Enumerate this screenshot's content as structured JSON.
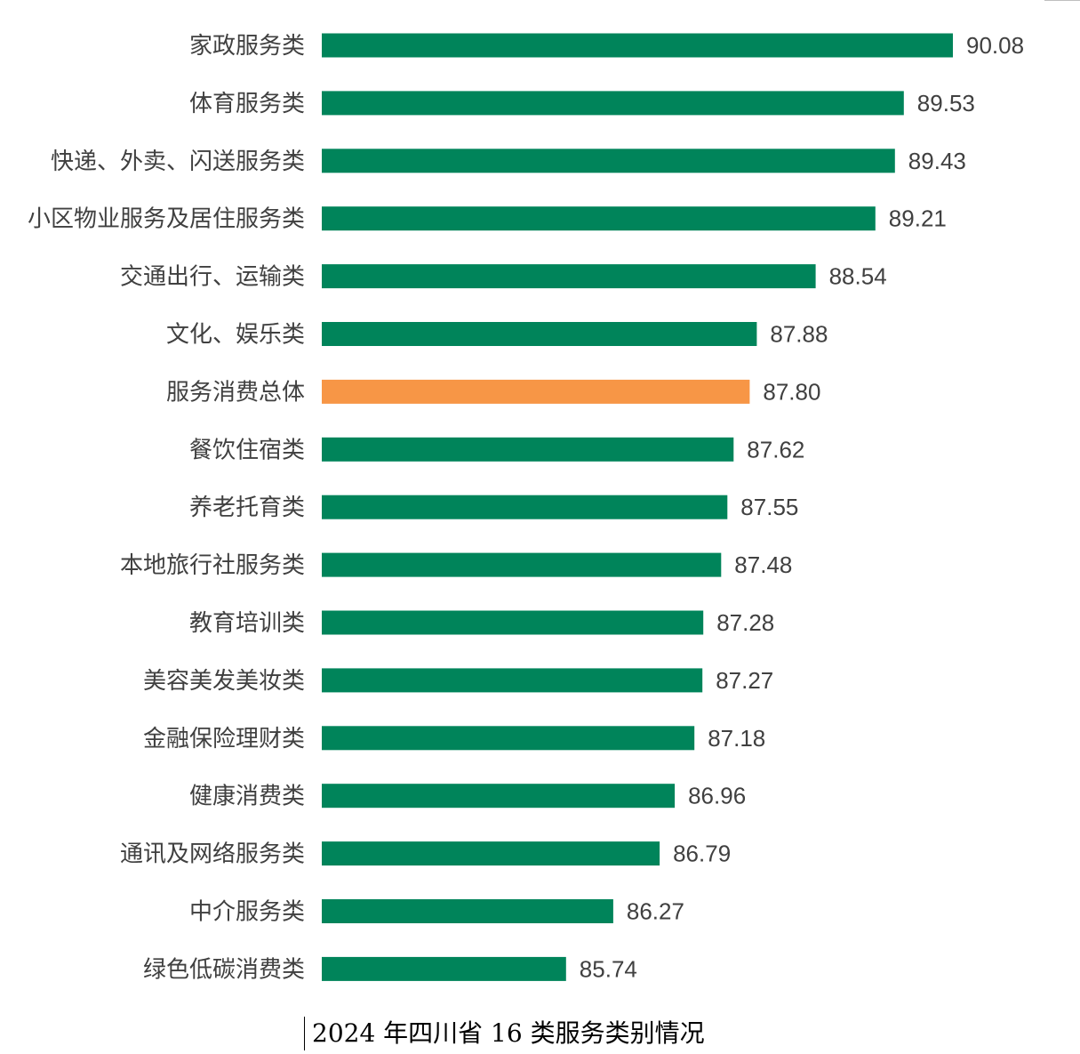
{
  "chart_data": {
    "type": "bar",
    "orientation": "horizontal",
    "categories": [
      "家政服务类",
      "体育服务类",
      "快递、外卖、闪送服务类",
      "小区物业服务及居住服务类",
      "交通出行、运输类",
      "文化、娱乐类",
      "服务消费总体",
      "餐饮住宿类",
      "养老托育类",
      "本地旅行社服务类",
      "教育培训类",
      "美容美发美妆类",
      "金融保险理财类",
      "健康消费类",
      "通讯及网络服务类",
      "中介服务类",
      "绿色低碳消费类"
    ],
    "values": [
      90.08,
      89.53,
      89.43,
      89.21,
      88.54,
      87.88,
      87.8,
      87.62,
      87.55,
      87.48,
      87.28,
      87.27,
      87.18,
      86.96,
      86.79,
      86.27,
      85.74
    ],
    "value_labels": [
      "90.08",
      "89.53",
      "89.43",
      "89.21",
      "88.54",
      "87.88",
      "87.80",
      "87.62",
      "87.55",
      "87.48",
      "87.28",
      "87.27",
      "87.18",
      "86.96",
      "86.79",
      "86.27",
      "85.74"
    ],
    "highlight_category": "服务消费总体",
    "colors": {
      "bar": "#00845A",
      "highlight": "#F79646",
      "label_text": "#404040"
    },
    "xlim": [
      83,
      90.5
    ],
    "grid": false,
    "legend": "none",
    "xlabel": "",
    "ylabel": ""
  },
  "caption": "2024 年四川省 16 类服务类别情况"
}
